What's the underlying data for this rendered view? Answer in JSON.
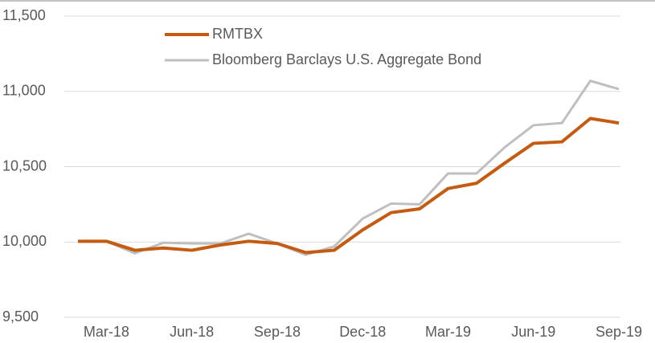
{
  "chart_data": {
    "type": "line",
    "categories": [
      null,
      "Mar-18",
      null,
      null,
      "Jun-18",
      null,
      null,
      "Sep-18",
      null,
      null,
      "Dec-18",
      null,
      null,
      "Mar-19",
      null,
      null,
      "Jun-19",
      null,
      null,
      "Sep-19"
    ],
    "series": [
      {
        "name": "RMTBX",
        "color": "#c55a11",
        "values": [
          10005,
          10005,
          9945,
          9960,
          9945,
          9980,
          10005,
          9990,
          9930,
          9945,
          10080,
          10195,
          10220,
          10355,
          10390,
          10525,
          10655,
          10665,
          10820,
          10790
        ]
      },
      {
        "name": "Bloomberg Barclays U.S. Aggregate Bond",
        "color": "#bfbfbf",
        "values": [
          10005,
          10005,
          9925,
          9995,
          9990,
          9990,
          10055,
          9990,
          9915,
          9970,
          10155,
          10255,
          10250,
          10455,
          10455,
          10630,
          10775,
          10790,
          11070,
          11015
        ]
      }
    ],
    "ylim": [
      9500,
      11500
    ],
    "yticks": [
      {
        "value": 9500,
        "label": "9,500"
      },
      {
        "value": 10000,
        "label": "10,000"
      },
      {
        "value": 10500,
        "label": "10,500"
      },
      {
        "value": 11000,
        "label": "11,000"
      },
      {
        "value": 11500,
        "label": "11,500"
      }
    ],
    "grid": true,
    "legend": "top-left"
  }
}
